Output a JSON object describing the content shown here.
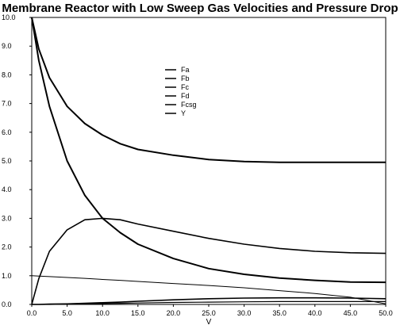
{
  "chart_data": {
    "type": "line",
    "title": "Membrane Reactor with Low Sweep Gas Velocities and  Pressure Drop",
    "xlabel": "V",
    "ylabel": "",
    "xlim": [
      0,
      50
    ],
    "ylim": [
      0,
      10
    ],
    "x_ticks": [
      "0.0",
      "5.0",
      "10.0",
      "15.0",
      "20.0",
      "25.0",
      "30.0",
      "35.0",
      "40.0",
      "45.0",
      "50.0"
    ],
    "y_ticks": [
      "0.0",
      "1.0",
      "2.0",
      "3.0",
      "4.0",
      "5.0",
      "6.0",
      "7.0",
      "8.0",
      "9.0",
      "10.0"
    ],
    "grid": false,
    "legend_position": "center",
    "x": [
      0,
      1,
      2.5,
      5,
      7.5,
      10,
      12.5,
      15,
      20,
      25,
      30,
      35,
      40,
      45,
      50
    ],
    "series": [
      {
        "name": "Fa",
        "color": "#000000",
        "values": [
          10.0,
          8.9,
          7.9,
          6.9,
          6.3,
          5.9,
          5.6,
          5.4,
          5.2,
          5.05,
          4.98,
          4.95,
          4.95,
          4.95,
          4.95
        ]
      },
      {
        "name": "Fb",
        "color": "#000000",
        "values": [
          10.0,
          8.5,
          6.9,
          5.0,
          3.8,
          3.0,
          2.5,
          2.1,
          1.6,
          1.25,
          1.05,
          0.92,
          0.84,
          0.78,
          0.77
        ]
      },
      {
        "name": "Fc",
        "color": "#000000",
        "values": [
          0.0,
          0.9,
          1.85,
          2.6,
          2.95,
          3.0,
          2.95,
          2.8,
          2.55,
          2.3,
          2.1,
          1.95,
          1.85,
          1.8,
          1.78
        ]
      },
      {
        "name": "Fd",
        "color": "#000000",
        "values": [
          0.0,
          0.0,
          0.01,
          0.02,
          0.04,
          0.06,
          0.08,
          0.11,
          0.16,
          0.2,
          0.22,
          0.23,
          0.23,
          0.22,
          0.2
        ]
      },
      {
        "name": "Fcsg",
        "color": "#000000",
        "values": [
          0.0,
          0.0,
          0.0,
          0.01,
          0.02,
          0.03,
          0.04,
          0.05,
          0.07,
          0.08,
          0.09,
          0.1,
          0.1,
          0.1,
          0.1
        ]
      },
      {
        "name": "Y",
        "color": "#000000",
        "values": [
          1.0,
          0.99,
          0.97,
          0.94,
          0.91,
          0.87,
          0.84,
          0.8,
          0.73,
          0.66,
          0.58,
          0.48,
          0.38,
          0.25,
          0.02
        ]
      }
    ]
  }
}
